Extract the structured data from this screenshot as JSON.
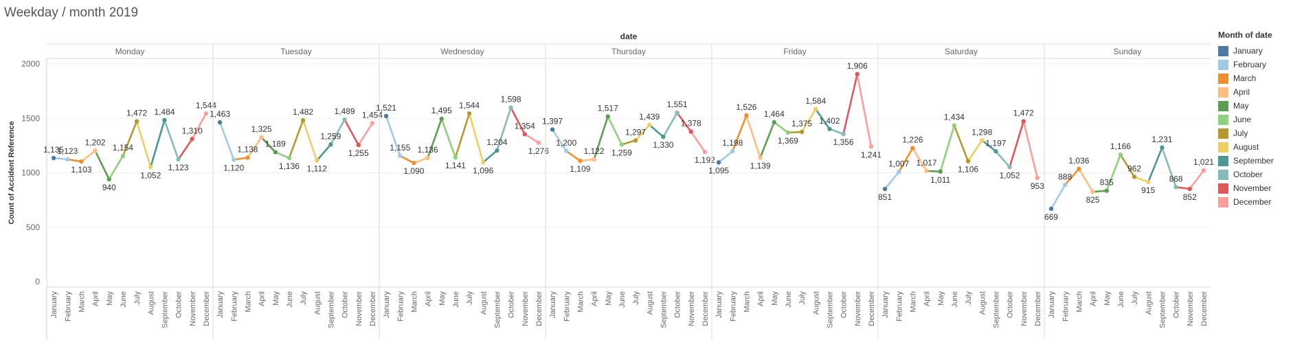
{
  "page_title": "Weekday / month 2019",
  "chart_data": {
    "type": "line",
    "column_header": "date",
    "ylabel": "Count of Accident Reference",
    "ylim": [
      0,
      2000
    ],
    "yticks": [
      "0",
      "500",
      "1000",
      "1500",
      "2000"
    ],
    "grid": true,
    "legend_position": "right",
    "legend_title": "Month of date",
    "months": [
      "January",
      "February",
      "March",
      "April",
      "May",
      "June",
      "July",
      "August",
      "September",
      "October",
      "November",
      "December"
    ],
    "month_colors": [
      "#4e79a7",
      "#a0cbe8",
      "#f28e2b",
      "#ffbe7d",
      "#59a14f",
      "#8cd17d",
      "#b6992d",
      "#f1ce63",
      "#499894",
      "#86bcb6",
      "#e15759",
      "#ff9d9a"
    ],
    "panels": [
      {
        "name": "Monday",
        "values": [
          1135,
          1123,
          1103,
          1202,
          940,
          1154,
          1472,
          1052,
          1484,
          1123,
          1310,
          1544
        ],
        "labels": [
          "1,135",
          "1,123",
          "1,103",
          "1,202",
          "940",
          "1,154",
          "1,472",
          "1,052",
          "1,484",
          "1,123",
          "1,310",
          "1,544"
        ]
      },
      {
        "name": "Tuesday",
        "values": [
          1463,
          1120,
          1138,
          1325,
          1189,
          1136,
          1482,
          1112,
          1259,
          1489,
          1255,
          1454
        ],
        "labels": [
          "1,463",
          "1,120",
          "1,138",
          "1,325",
          "1,189",
          "1,136",
          "1,482",
          "1,112",
          "1,259",
          "1,489",
          "1,255",
          "1,454"
        ]
      },
      {
        "name": "Wednesday",
        "values": [
          1521,
          1155,
          1090,
          1136,
          1495,
          1141,
          1544,
          1096,
          1204,
          1598,
          1354,
          1276
        ],
        "labels": [
          "1,521",
          "1,155",
          "1,090",
          "1,136",
          "1,495",
          "1,141",
          "1,544",
          "1,096",
          "1,204",
          "1,598",
          "1,354",
          "1,276"
        ]
      },
      {
        "name": "Thursday",
        "values": [
          1397,
          1200,
          1109,
          1122,
          1517,
          1259,
          1297,
          1439,
          1330,
          1551,
          1378,
          1192
        ],
        "labels": [
          "1,397",
          "1,200",
          "1,109",
          "1,122",
          "1,517",
          "1,259",
          "1,297",
          "1,439",
          "1,330",
          "1,551",
          "1,378",
          "1,192"
        ]
      },
      {
        "name": "Friday",
        "values": [
          1095,
          1198,
          1526,
          1139,
          1464,
          1369,
          1375,
          1584,
          1402,
          1356,
          1906,
          1241
        ],
        "labels": [
          "1,095",
          "1,198",
          "1,526",
          "1,139",
          "1,464",
          "1,369",
          "1,375",
          "1,584",
          "1,402",
          "1,356",
          "1,906",
          "1,241"
        ]
      },
      {
        "name": "Saturday",
        "values": [
          851,
          1007,
          1226,
          1017,
          1011,
          1434,
          1106,
          1298,
          1197,
          1052,
          1472,
          953
        ],
        "labels": [
          "851",
          "1,007",
          "1,226",
          "1,017",
          "1,011",
          "1,434",
          "1,106",
          "1,298",
          "1,197",
          "1,052",
          "1,472",
          "953"
        ]
      },
      {
        "name": "Sunday",
        "values": [
          669,
          888,
          1036,
          825,
          835,
          1166,
          962,
          915,
          1231,
          868,
          852,
          1021
        ],
        "labels": [
          "669",
          "888",
          "1,036",
          "825",
          "835",
          "1,166",
          "962",
          "915",
          "1,231",
          "868",
          "852",
          "1,021"
        ]
      }
    ]
  }
}
